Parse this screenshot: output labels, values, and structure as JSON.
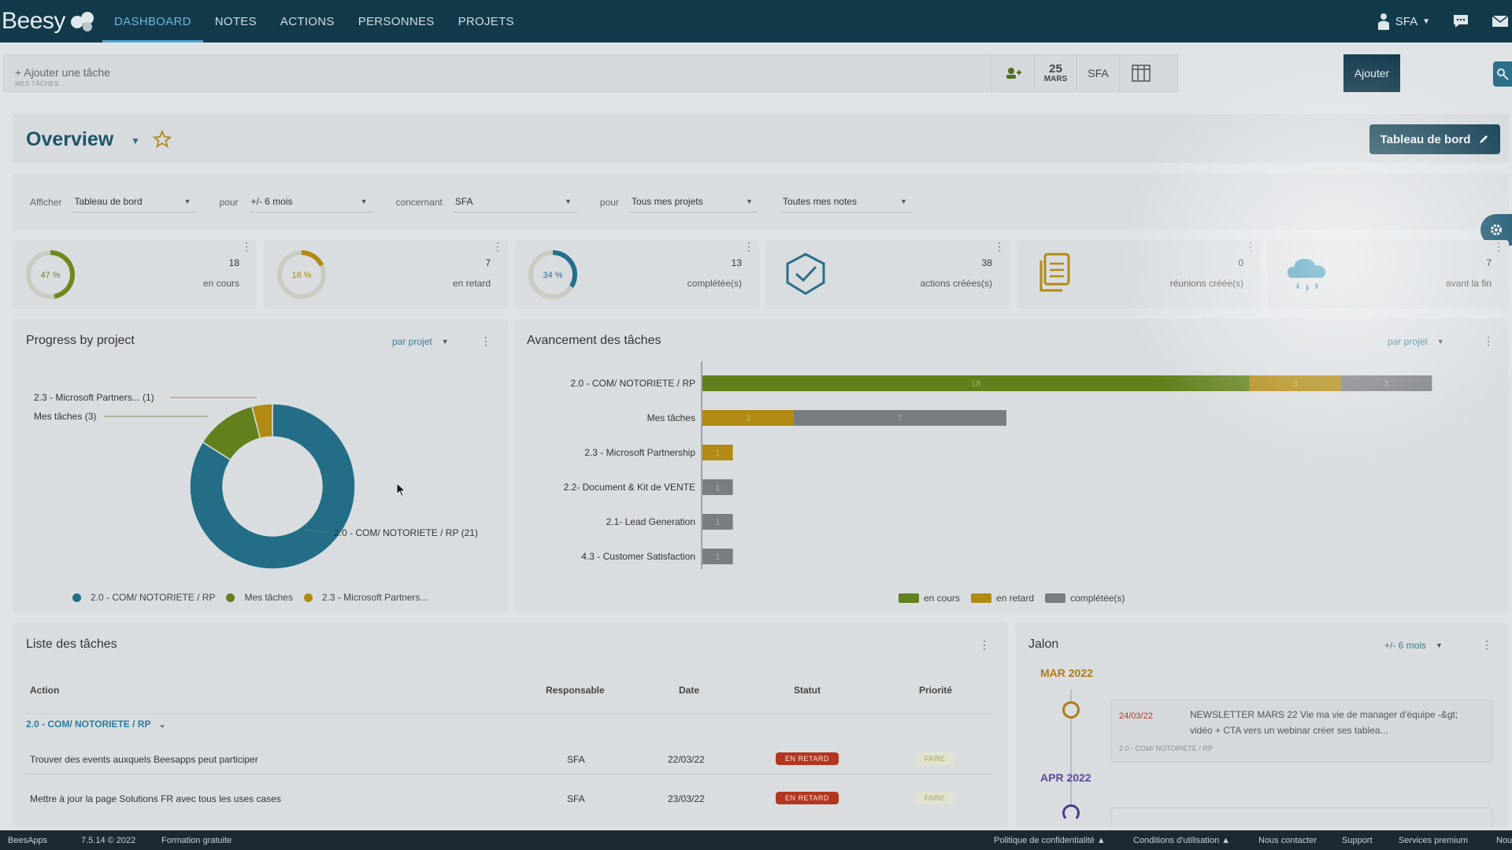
{
  "nav": {
    "logo": "Beesy",
    "tabs": [
      "DASHBOARD",
      "NOTES",
      "ACTIONS",
      "PERSONNES",
      "PROJETS"
    ],
    "user": "SFA"
  },
  "quickbar": {
    "placeholder": "+ Ajouter une tâche",
    "sublabel": "MES TÂCHES",
    "date_day": "25",
    "date_month": "MARS",
    "owner": "SFA",
    "add_label": "Ajouter"
  },
  "overview": {
    "title": "Overview",
    "dashboard_button": "Tableau de bord"
  },
  "filters": {
    "show_label": "Afficher",
    "show_value": "Tableau de bord",
    "for_label": "pour",
    "period_value": "+/- 6 mois",
    "concerning_label": "concernant",
    "concerning_value": "SFA",
    "for_label_2": "pour",
    "projects_value": "Tous mes projets",
    "notes_value": "Toutes mes notes"
  },
  "kpis": [
    {
      "gauge": "47 %",
      "percent": 47,
      "color": "#6b8a1a",
      "value": "18",
      "label": "en cours"
    },
    {
      "gauge": "18 %",
      "percent": 18,
      "color": "#b08a12",
      "value": "7",
      "label": "en retard"
    },
    {
      "gauge": "34 %",
      "percent": 34,
      "color": "#246f8c",
      "value": "13",
      "label": "complétée(s)"
    },
    {
      "icon": "check-shield-icon",
      "value": "38",
      "label": "actions créées(s)"
    },
    {
      "icon": "documents-icon",
      "value": "0",
      "label": "réunions créée(s)"
    },
    {
      "icon": "cloud-rain-icon",
      "value": "7",
      "label": "avant la fin"
    }
  ],
  "progress_card": {
    "title": "Progress by project",
    "select": "par projet",
    "labels": [
      "2.3 - Microsoft Partners... (1)",
      "Mes tâches (3)",
      "2.0 - COM/ NOTORIETE / RP (21)"
    ],
    "legend": [
      "2.0 - COM/ NOTORIETE / RP",
      "Mes tâches",
      "2.3 - Microsoft Partners..."
    ]
  },
  "avancement_card": {
    "title": "Avancement des tâches",
    "select": "par projet",
    "legend": [
      "en cours",
      "en retard",
      "complétée(s)"
    ]
  },
  "chart_data": [
    {
      "type": "pie",
      "categories": [
        "2.0 - COM/ NOTORIETE / RP",
        "Mes tâches",
        "2.3 - Microsoft Partners..."
      ],
      "values": [
        21,
        3,
        1
      ],
      "colors": [
        "#236e86",
        "#62801c",
        "#b08a12"
      ]
    },
    {
      "type": "bar",
      "orientation": "horizontal",
      "stacked": true,
      "categories": [
        "2.0 - COM/ NOTORIETE / RP",
        "Mes tâches",
        "2.3 -  Microsoft Partnership",
        "2.2- Document & Kit de VENTE",
        "2.1- Lead Generation",
        "4.3 - Customer Satisfaction"
      ],
      "series": [
        {
          "name": "en cours",
          "color": "#62801c",
          "values": [
            18,
            0,
            0,
            0,
            0,
            0
          ]
        },
        {
          "name": "en retard",
          "color": "#b08a12",
          "values": [
            3,
            3,
            1,
            0,
            0,
            0
          ]
        },
        {
          "name": "complétée(s)",
          "color": "#7a7d80",
          "values": [
            3,
            7,
            0,
            1,
            1,
            1
          ]
        }
      ]
    }
  ],
  "tasks": {
    "title": "Liste des tâches",
    "columns": [
      "Action",
      "Responsable",
      "Date",
      "Statut",
      "Priorité"
    ],
    "group": "2.0 - COM/ NOTORIETE / RP",
    "rows": [
      {
        "action": "Trouver des events auxquels Beesapps peut participer",
        "owner": "SFA",
        "date": "22/03/22",
        "status": "EN RETARD",
        "priority": "FAIRE"
      },
      {
        "action": "Mettre à jour la page Solutions FR avec tous les uses cases",
        "owner": "SFA",
        "date": "23/03/22",
        "status": "EN RETARD",
        "priority": "FAIRE"
      }
    ]
  },
  "jalon": {
    "title": "Jalon",
    "select": "+/- 6 mois",
    "month1": "MAR 2022",
    "month2": "APR 2022",
    "item_date": "24/03/22",
    "item_text": "NEWSLETTER MARS 22 Vie ma vie de manager d'équipe -&gt; vidéo + CTA vers un webinar créer ses tablea...",
    "item_project": "2.0 - COM/ NOTORIETE / RP",
    "month1_color": "#b07a14",
    "month2_color": "#5a4a9a"
  },
  "footer": {
    "brand": "BeesApps",
    "version": "7.5.14 © 2022",
    "training": "Formation gratuite",
    "privacy": "Politique de confidentialité ▲",
    "terms": "Conditions d'utilisation ▲",
    "contact": "Nous contacter",
    "support": "Support",
    "premium": "Services premium",
    "more": "Nou"
  }
}
